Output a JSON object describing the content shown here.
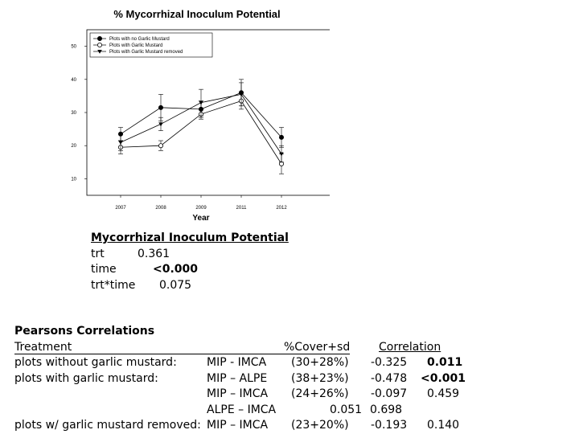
{
  "chart_data": {
    "type": "line",
    "title": "% Mycorrhizal Inoculum Potential",
    "xlabel": "Year",
    "ylabel": "",
    "categories": [
      "2007",
      "2008",
      "2009",
      "2011",
      "2012"
    ],
    "ylim": [
      5,
      55
    ],
    "yticks": [
      10,
      20,
      30,
      40,
      50
    ],
    "legend_position": "top-left",
    "series": [
      {
        "name": "Plots with no Garlic Mustard",
        "marker": "filled-circle",
        "values": [
          23.5,
          31.5,
          31.0,
          36.0,
          22.5
        ],
        "err": [
          2.0,
          4.0,
          2.5,
          4.0,
          3.0
        ]
      },
      {
        "name": "Plots with Garlic Mustard",
        "marker": "open-circle",
        "values": [
          19.5,
          20.0,
          29.5,
          33.5,
          14.5
        ],
        "err": [
          2.0,
          1.5,
          1.5,
          2.5,
          3.0
        ]
      },
      {
        "name": "Plots with Garlic Mustard removed",
        "marker": "filled-triangle",
        "values": [
          21.0,
          26.5,
          33.0,
          35.5,
          17.5
        ],
        "err": [
          2.5,
          2.0,
          4.0,
          3.5,
          2.5
        ]
      }
    ]
  },
  "anova": {
    "title": "Mycorrhizal Inoculum Potential",
    "rows": [
      {
        "label": "trt",
        "value": "0.361",
        "bold": false
      },
      {
        "label": "time",
        "value": "<0.000",
        "bold": true
      },
      {
        "label": "trt*time",
        "value": "0.075",
        "bold": false
      }
    ]
  },
  "pearson": {
    "title": "Pearsons Correlations",
    "headers": {
      "treatment": "Treatment",
      "cover": "%Cover+sd",
      "correlation": "Correlation"
    },
    "rows": [
      {
        "treatment": "plots without garlic mustard:",
        "pair": "MIP - IMCA",
        "cover": "(30+28%)",
        "r": "-0.325",
        "p": "0.011",
        "p_bold": true
      },
      {
        "treatment": "plots with garlic mustard:",
        "pair": "MIP – ALPE",
        "cover": "(38+23%)",
        "r": "-0.478",
        "p": "<0.001",
        "p_bold": true
      },
      {
        "treatment": "",
        "pair": "MIP – IMCA",
        "cover": "(24+26%)",
        "r": "-0.097",
        "p": "0.459",
        "p_bold": false
      },
      {
        "treatment": "",
        "pair": "ALPE – IMCA",
        "cover": "0.051",
        "r": "0.698",
        "p": "",
        "p_bold": false
      },
      {
        "treatment": "plots w/ garlic mustard removed:",
        "pair": "MIP – IMCA",
        "cover": "(23+20%)",
        "r": "-0.193",
        "p": "0.140",
        "p_bold": false
      }
    ]
  }
}
